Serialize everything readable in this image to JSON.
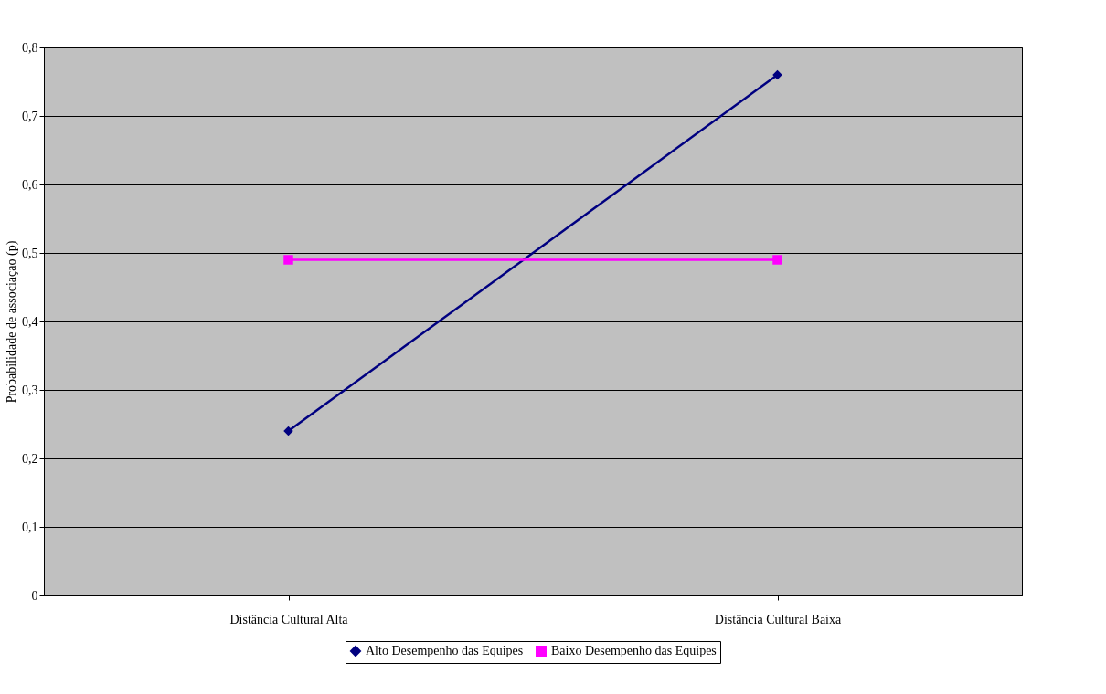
{
  "chart_data": {
    "type": "line",
    "ylabel": "Probabilidade de associaçao (p)",
    "categories": [
      "Distância Cultural Alta",
      "Distância Cultural Baixa"
    ],
    "series": [
      {
        "name": "Alto Desempenho das Equipes",
        "color": "#000080",
        "marker": "diamond",
        "values": [
          0.24,
          0.76
        ]
      },
      {
        "name": "Baixo Desempenho das Equipes",
        "color": "#ff00ff",
        "marker": "square",
        "values": [
          0.49,
          0.49
        ]
      }
    ],
    "ylim": [
      0,
      0.8
    ],
    "yticks": [
      0,
      {
        "value": 0.1,
        "label": "0,1"
      },
      {
        "value": 0.2,
        "label": "0,2"
      },
      {
        "value": 0.3,
        "label": "0,3"
      },
      {
        "value": 0.4,
        "label": "0,4"
      },
      {
        "value": 0.5,
        "label": "0,5"
      },
      {
        "value": 0.6,
        "label": "0,6"
      },
      {
        "value": 0.7,
        "label": "0,7"
      },
      {
        "value": 0.8,
        "label": "0,8"
      }
    ],
    "grid": "y",
    "legend": "bottom",
    "line_style": "solid"
  }
}
